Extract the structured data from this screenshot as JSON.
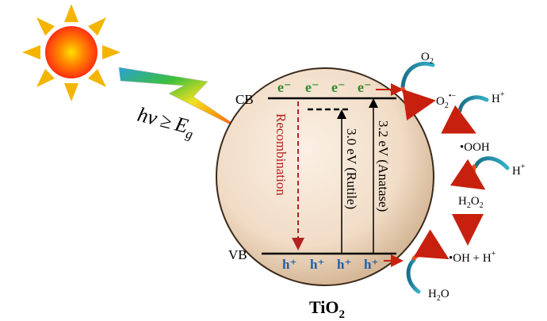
{
  "photon": {
    "h": "h",
    "nu": "ν",
    "rel": "≥",
    "E": "E",
    "g": "g"
  },
  "bands": {
    "cb": "CB",
    "vb": "VB"
  },
  "electrons": [
    "e⁻",
    "e⁻",
    "e⁻",
    "e⁻"
  ],
  "holes": [
    "h⁺",
    "h⁺",
    "h⁺",
    "h⁺"
  ],
  "labels": {
    "recombination": "Recombination",
    "rutile": "3.0 eV (Rutile)",
    "anatase": "3.2 eV (Anatase)",
    "material": "TiO",
    "material_sub": "2"
  },
  "species": {
    "o2": {
      "main": "O",
      "sub": "2"
    },
    "superoxide": {
      "main": "O",
      "sub": "2",
      "sup": "•−"
    },
    "h_plus_1": {
      "main": "H",
      "sup": "+"
    },
    "ooh": "•OOH",
    "h_plus_2": {
      "main": "H",
      "sup": "+"
    },
    "h2o2": {
      "a": "H",
      "sub1": "2",
      "b": "O",
      "sub2": "2"
    },
    "oh": "•OH + H",
    "oh_sup": "+",
    "h2o": {
      "a": "H",
      "sub": "2",
      "b": "O"
    }
  },
  "colors": {
    "electron": "#2e8b2e",
    "hole": "#1f5fa8",
    "recombination": "#b22222",
    "sphere": "#f3e2cf",
    "sun_core": "#ff4a14",
    "sun_ray": "#f4b400"
  }
}
